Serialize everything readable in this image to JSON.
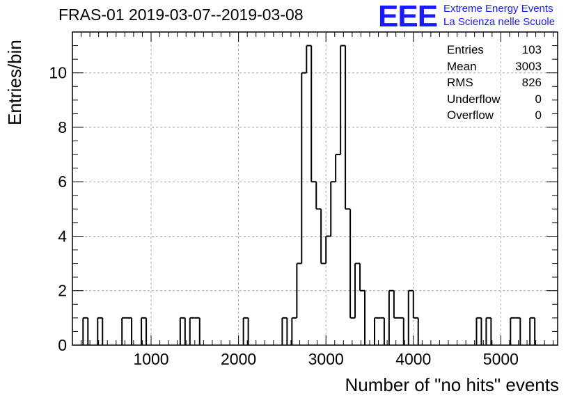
{
  "title": "FRAS-01 2019-03-07--2019-03-08",
  "logo": {
    "mark": "EEE",
    "line1": "Extreme Energy Events",
    "line2": "La Scienza nelle Scuole",
    "color": "#1a1aff"
  },
  "stats": [
    {
      "label": "Entries",
      "value": "103"
    },
    {
      "label": "Mean",
      "value": "3003"
    },
    {
      "label": "RMS",
      "value": "826"
    },
    {
      "label": "Underflow",
      "value": "0"
    },
    {
      "label": "Overflow",
      "value": "0"
    }
  ],
  "chart_data": {
    "type": "histogram",
    "xlabel": "Number of \"no hits\" events",
    "ylabel": "Entries/bin",
    "xlim": [
      100,
      5650
    ],
    "ylim": [
      0,
      11.5
    ],
    "bin_width": 55.5,
    "grid": true,
    "x_ticks": [
      1000,
      2000,
      3000,
      4000,
      5000
    ],
    "y_ticks": [
      0,
      2,
      4,
      6,
      8,
      10
    ],
    "x_tick_labels": [
      "1000",
      "2000",
      "3000",
      "4000",
      "5000"
    ],
    "y_tick_labels": [
      "0",
      "2",
      "4",
      "6",
      "8",
      "10"
    ],
    "bins": [
      {
        "x": 222,
        "count": 1
      },
      {
        "x": 389,
        "count": 1
      },
      {
        "x": 667,
        "count": 1
      },
      {
        "x": 722,
        "count": 1
      },
      {
        "x": 889,
        "count": 1
      },
      {
        "x": 1333,
        "count": 1
      },
      {
        "x": 1444,
        "count": 1
      },
      {
        "x": 1500,
        "count": 1
      },
      {
        "x": 2056,
        "count": 1
      },
      {
        "x": 2500,
        "count": 1
      },
      {
        "x": 2611,
        "count": 1
      },
      {
        "x": 2667,
        "count": 3
      },
      {
        "x": 2722,
        "count": 10
      },
      {
        "x": 2778,
        "count": 11
      },
      {
        "x": 2833,
        "count": 6
      },
      {
        "x": 2889,
        "count": 5
      },
      {
        "x": 2944,
        "count": 3
      },
      {
        "x": 3000,
        "count": 4
      },
      {
        "x": 3056,
        "count": 6
      },
      {
        "x": 3111,
        "count": 7
      },
      {
        "x": 3167,
        "count": 11
      },
      {
        "x": 3222,
        "count": 5
      },
      {
        "x": 3278,
        "count": 1
      },
      {
        "x": 3333,
        "count": 3
      },
      {
        "x": 3389,
        "count": 2
      },
      {
        "x": 3556,
        "count": 1
      },
      {
        "x": 3611,
        "count": 1
      },
      {
        "x": 3722,
        "count": 2
      },
      {
        "x": 3778,
        "count": 1
      },
      {
        "x": 3833,
        "count": 1
      },
      {
        "x": 3944,
        "count": 2
      },
      {
        "x": 4000,
        "count": 1
      },
      {
        "x": 4722,
        "count": 1
      },
      {
        "x": 4833,
        "count": 1
      },
      {
        "x": 5111,
        "count": 1
      },
      {
        "x": 5167,
        "count": 1
      },
      {
        "x": 5333,
        "count": 1
      }
    ]
  }
}
